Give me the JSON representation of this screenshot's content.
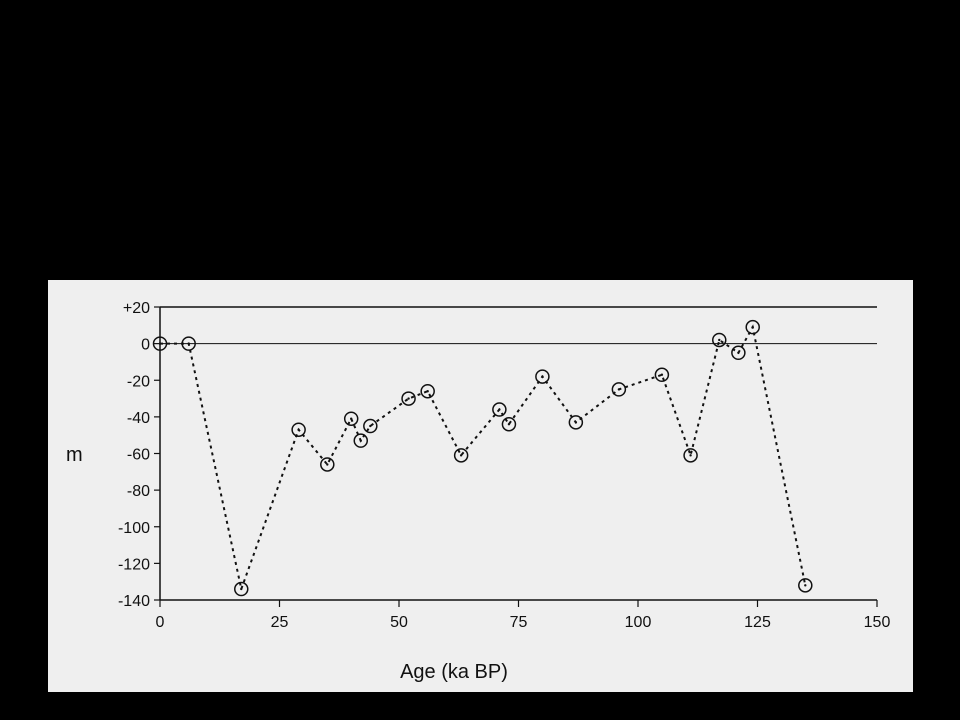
{
  "chart_data": {
    "type": "scatter",
    "style": "dotted line connecting open circle markers",
    "title": "",
    "xlabel": "Age (ka BP)",
    "ylabel": "m",
    "xlim": [
      0,
      150
    ],
    "ylim": [
      -140,
      20
    ],
    "xticks": [
      0,
      25,
      50,
      75,
      100,
      125,
      150
    ],
    "yticks": [
      20,
      0,
      -20,
      -40,
      -60,
      -80,
      -100,
      -120,
      -140
    ],
    "ytick_labels": [
      "+20",
      "0",
      "-20",
      "-40",
      "-60",
      "-80",
      "-100",
      "-120",
      "-140"
    ],
    "reference_line_y": 0,
    "grid": false,
    "series": [
      {
        "color": "#111111",
        "x": [
          0,
          6,
          17,
          29,
          35,
          40,
          42,
          44,
          52,
          56,
          63,
          71,
          73,
          80,
          87,
          96,
          105,
          111,
          117,
          121,
          124,
          135
        ],
        "y": [
          0,
          0,
          -134,
          -47,
          -66,
          -41,
          -53,
          -45,
          -30,
          -26,
          -61,
          -36,
          -44,
          -18,
          -43,
          -25,
          -17,
          -61,
          2,
          -5,
          9,
          -132
        ]
      }
    ]
  }
}
